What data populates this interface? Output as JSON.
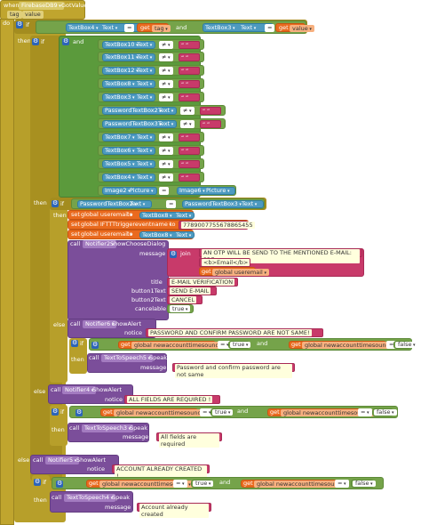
{
  "event": {
    "when": "when",
    "component": "FirebaseDB9",
    "event": "GotValue",
    "params": [
      "tag",
      "value"
    ],
    "do": "do"
  },
  "kw": {
    "if": "if",
    "then": "then",
    "else": "else",
    "and": "and",
    "call": "call",
    "set": "set",
    "to": "to",
    "get": "get",
    "eq": "=",
    "neq": "≠",
    "text": "Text",
    "picture": "Picture",
    "join": "join"
  },
  "outer_if": {
    "comp": "TextBox4",
    "prop": "Text",
    "get": "get",
    "tag": "tag",
    "and": "and",
    "comp2": "TextBox3",
    "prop2": "Text",
    "value": "value"
  },
  "and_rows": [
    {
      "comp": "TextBox10",
      "prop": "Text"
    },
    {
      "comp": "TextBox11",
      "prop": "Text"
    },
    {
      "comp": "TextBox12",
      "prop": "Text"
    },
    {
      "comp": "TextBox8",
      "prop": "Text"
    },
    {
      "comp": "TextBox3",
      "prop": "Text"
    },
    {
      "comp": "PasswordTextBox2",
      "prop": "Text"
    },
    {
      "comp": "PasswordTextBox3",
      "prop": "Text"
    },
    {
      "comp": "TextBox7",
      "prop": "Text"
    },
    {
      "comp": "TextBox6",
      "prop": "Text"
    },
    {
      "comp": "TextBox5",
      "prop": "Text"
    },
    {
      "comp": "TextBox4",
      "prop": "Text"
    }
  ],
  "image_row": {
    "comp": "Image2",
    "prop": "Picture",
    "comp2": "Image6",
    "prop2": "Picture"
  },
  "pw_if": {
    "comp": "PasswordTextBox2",
    "prop": "Text",
    "comp2": "PasswordTextBox3",
    "prop2": "Text"
  },
  "set_rows": [
    {
      "var": "global useremail",
      "comp": "TextBox8",
      "prop": "Text"
    },
    {
      "var": "global IFTTTtriggereventname",
      "value": "7789007755678865455"
    },
    {
      "var": "global useremail",
      "comp": "TextBox8",
      "prop": "Text"
    }
  ],
  "notifier2": {
    "comp": "Notifier2",
    "method": "ShowChooseDialog",
    "message": "message",
    "join": "join",
    "join_items": [
      "AN OTP WILL BE SEND TO THE MENTIONED E-MAIL: PRE...",
      "<b>Email</b>",
      "global useremail"
    ],
    "title_lbl": "title",
    "title": "E-MAIL VERIFICATION",
    "b1_lbl": "button1Text",
    "b1": "SEND E-MAIL",
    "b2_lbl": "button2Text",
    "b2": "CANCEL",
    "cancel_lbl": "cancelable",
    "cancel": "true"
  },
  "notifier6": {
    "comp": "Notifier6",
    "method": "ShowAlert",
    "notice_lbl": "notice",
    "notice": "PASSWORD AND CONFIRM PASSWORD ARE NOT SAME!"
  },
  "sound_if1": {
    "var": "global newaccounttimesound",
    "val": "true",
    "var2": "global newaccounttimesound",
    "val2": "false"
  },
  "tts5": {
    "comp": "TextToSpeech5",
    "method": "Speak",
    "msg_lbl": "message",
    "msg": "Password and confirm password are not same"
  },
  "notifier4": {
    "comp": "Notifier4",
    "method": "ShowAlert",
    "notice_lbl": "notice",
    "notice": "ALL FIELDS ARE REQUIRED !"
  },
  "sound_if2": {
    "var": "global newaccounttimesound",
    "val": "true",
    "var2": "global newaccounttimesound",
    "val2": "false"
  },
  "tts3": {
    "comp": "TextToSpeech3",
    "method": "Speak",
    "msg_lbl": "message",
    "msg": "All fields are required"
  },
  "notifier5": {
    "comp": "Notifier5",
    "method": "ShowAlert",
    "notice_lbl": "notice",
    "notice": "ACCOUNT ALREADY CREATED !"
  },
  "sound_if3": {
    "var": "global newaccounttimesound",
    "val": "true",
    "var2": "global newaccounttimesound",
    "val2": "false"
  },
  "tts4": {
    "comp": "TextToSpeech4",
    "method": "Speak",
    "msg_lbl": "message",
    "msg": "Account already created"
  }
}
